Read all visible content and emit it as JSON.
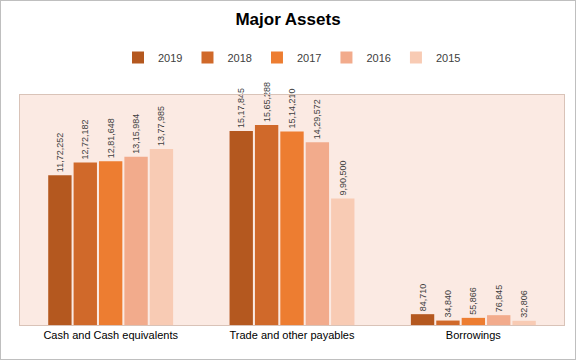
{
  "chart_data": {
    "type": "bar",
    "title": "Major Assets",
    "categories": [
      "Cash and Cash equivalents",
      "Trade and other payables",
      "Borrowings"
    ],
    "series": [
      {
        "name": "2019",
        "color": "#b4581f",
        "values": [
          1172252,
          1517845,
          84710
        ],
        "value_labels": [
          "11,72,252",
          "15,17,845",
          "84,710"
        ]
      },
      {
        "name": "2018",
        "color": "#d0692a",
        "values": [
          1272182,
          1565288,
          34840
        ],
        "value_labels": [
          "12,72,182",
          "15,65,288",
          "34,840"
        ]
      },
      {
        "name": "2017",
        "color": "#ed7d31",
        "values": [
          1281648,
          1514210,
          55866
        ],
        "value_labels": [
          "12,81,648",
          "15,14,210",
          "55,866"
        ]
      },
      {
        "name": "2016",
        "color": "#f2ab8c",
        "values": [
          1315984,
          1429572,
          76845
        ],
        "value_labels": [
          "13,15,984",
          "14,29,572",
          "76,845"
        ]
      },
      {
        "name": "2015",
        "color": "#f8cbb4",
        "values": [
          1377985,
          990500,
          32806
        ],
        "value_labels": [
          "13,77,985",
          "9,90,500",
          "32,806"
        ]
      }
    ],
    "ylim": [
      0,
      1800000
    ],
    "legend": "top",
    "data_labels": true,
    "tick_labels": "x",
    "grid": false
  }
}
